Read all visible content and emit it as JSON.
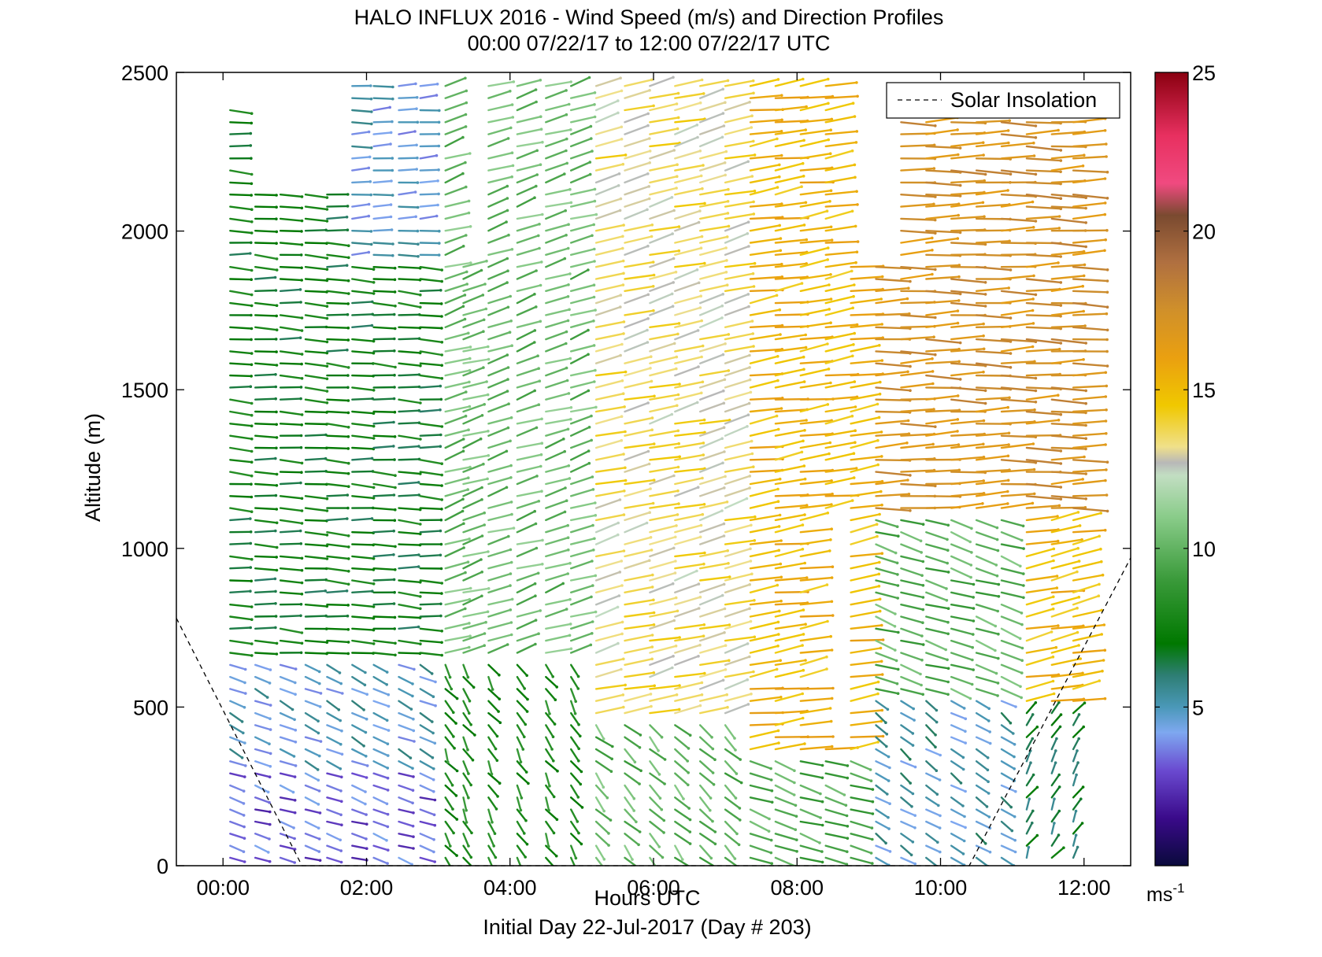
{
  "chart_data": {
    "type": "wind-profile",
    "title": "HALO INFLUX 2016 - Wind Speed (m/s) and Direction Profiles",
    "subtitle": "00:00 07/22/17 to 12:00 07/22/17  UTC",
    "xlabel": "Hours UTC",
    "ylabel": "Altitude (m)",
    "footer": "Initial Day 22-Jul-2017 (Day # 203)",
    "xlim": [
      -0.65,
      12.65
    ],
    "ylim": [
      0,
      2500
    ],
    "x_ticks": [
      0,
      2,
      4,
      6,
      8,
      10,
      12
    ],
    "x_tick_labels": [
      "00:00",
      "02:00",
      "04:00",
      "06:00",
      "08:00",
      "10:00",
      "12:00"
    ],
    "y_ticks": [
      0,
      500,
      1000,
      1500,
      2000,
      2500
    ],
    "y_tick_labels": [
      "0",
      "500",
      "1000",
      "1500",
      "2000",
      "2500"
    ],
    "legend": {
      "entries": [
        "Solar Insolation"
      ],
      "placement": "top-right",
      "line_style": "dashed",
      "line_color": "#000000"
    },
    "colorbar": {
      "min": 0,
      "max": 25,
      "ticks": [
        5,
        10,
        15,
        20,
        25
      ],
      "tick_labels": [
        "5",
        "10",
        "15",
        "20",
        "25"
      ],
      "unit_label": "ms",
      "unit_exponent": "-1",
      "stops": [
        {
          "value": 0,
          "color": "#0a0a3c"
        },
        {
          "value": 1.5,
          "color": "#3a0a8a"
        },
        {
          "value": 3,
          "color": "#6a4ad0"
        },
        {
          "value": 4.2,
          "color": "#7ea8f0"
        },
        {
          "value": 5,
          "color": "#4a98b8"
        },
        {
          "value": 6,
          "color": "#2e7e74"
        },
        {
          "value": 7,
          "color": "#007800"
        },
        {
          "value": 9,
          "color": "#3a9a3a"
        },
        {
          "value": 11,
          "color": "#8acc8a"
        },
        {
          "value": 12.3,
          "color": "#c2dec2"
        },
        {
          "value": 12.7,
          "color": "#b8b8b8"
        },
        {
          "value": 13.2,
          "color": "#f0e08a"
        },
        {
          "value": 14.5,
          "color": "#f0c800"
        },
        {
          "value": 16,
          "color": "#eaa010"
        },
        {
          "value": 17.5,
          "color": "#d0902a"
        },
        {
          "value": 19,
          "color": "#b07040"
        },
        {
          "value": 20.5,
          "color": "#7a4a30"
        },
        {
          "value": 21.5,
          "color": "#f04a80"
        },
        {
          "value": 23,
          "color": "#e83060"
        },
        {
          "value": 25,
          "color": "#8a0010"
        }
      ]
    },
    "solar_insolation": [
      {
        "x": -0.65,
        "y": 780
      },
      {
        "x": 1.1,
        "y": 0
      },
      {
        "x": 10.4,
        "y": 0
      },
      {
        "x": 12.65,
        "y": 970
      }
    ],
    "profile_times": [
      0.1,
      0.45,
      0.8,
      1.15,
      1.45,
      1.8,
      2.1,
      2.45,
      2.75,
      3.1,
      3.35,
      3.7,
      4.1,
      4.5,
      4.85,
      5.2,
      5.6,
      5.95,
      6.3,
      6.65,
      7.0,
      7.35,
      7.7,
      8.05,
      8.4,
      8.75,
      9.1,
      9.45,
      9.8,
      10.15,
      10.5,
      10.85,
      11.2,
      11.55,
      11.85
    ],
    "segments": [
      {
        "x_from": 0.0,
        "x_to": 3.35,
        "y_from": 0,
        "y_to": 300,
        "speed": 3.2,
        "dir_from": 300
      },
      {
        "x_from": 0.0,
        "x_to": 3.0,
        "y_from": 300,
        "y_to": 650,
        "speed": 4.8,
        "dir_from": 310
      },
      {
        "x_from": 0.0,
        "x_to": 3.0,
        "y_from": 650,
        "y_to": 2400,
        "speed": 7.2,
        "dir_from": 275
      },
      {
        "x_from": 1.7,
        "x_to": 3.1,
        "y_from": 1900,
        "y_to": 2500,
        "speed": 4.6,
        "dir_from": 265
      },
      {
        "x_from": 3.0,
        "x_to": 5.1,
        "y_from": 0,
        "y_to": 650,
        "speed": 8.0,
        "dir_from": 340
      },
      {
        "x_from": 3.0,
        "x_to": 5.1,
        "y_from": 650,
        "y_to": 2500,
        "speed": 10.2,
        "dir_from": 240
      },
      {
        "x_from": 5.1,
        "x_to": 7.3,
        "y_from": 0,
        "y_to": 450,
        "speed": 10.0,
        "dir_from": 330
      },
      {
        "x_from": 5.1,
        "x_to": 7.3,
        "y_from": 450,
        "y_to": 2500,
        "speed": 13.4,
        "dir_from": 245
      },
      {
        "x_from": 7.3,
        "x_to": 8.8,
        "y_from": 0,
        "y_to": 350,
        "speed": 9.5,
        "dir_from": 300
      },
      {
        "x_from": 7.3,
        "x_to": 8.8,
        "y_from": 350,
        "y_to": 2500,
        "speed": 15.2,
        "dir_from": 255
      },
      {
        "x_from": 8.8,
        "x_to": 10.9,
        "y_from": 0,
        "y_to": 550,
        "speed": 5.2,
        "dir_from": 320
      },
      {
        "x_from": 8.8,
        "x_to": 10.9,
        "y_from": 550,
        "y_to": 1100,
        "speed": 9.8,
        "dir_from": 300
      },
      {
        "x_from": 8.8,
        "x_to": 11.9,
        "y_from": 1100,
        "y_to": 2500,
        "speed": 17.2,
        "dir_from": 268
      },
      {
        "x_from": 10.9,
        "x_to": 11.9,
        "y_from": 0,
        "y_to": 500,
        "speed": 6.5,
        "dir_from": 200
      },
      {
        "x_from": 10.9,
        "x_to": 11.9,
        "y_from": 500,
        "y_to": 1100,
        "speed": 15.0,
        "dir_from": 250
      }
    ],
    "gaps": [
      {
        "x_from": 3.25,
        "x_to": 3.55,
        "y_from": 1900,
        "y_to": 2500
      },
      {
        "x_from": 0.3,
        "x_to": 1.6,
        "y_from": 2150,
        "y_to": 2500
      },
      {
        "x_from": 8.1,
        "x_to": 8.5,
        "y_from": 400,
        "y_to": 1100
      },
      {
        "x_from": 8.5,
        "x_to": 9.2,
        "y_from": 1900,
        "y_to": 2500
      }
    ]
  }
}
